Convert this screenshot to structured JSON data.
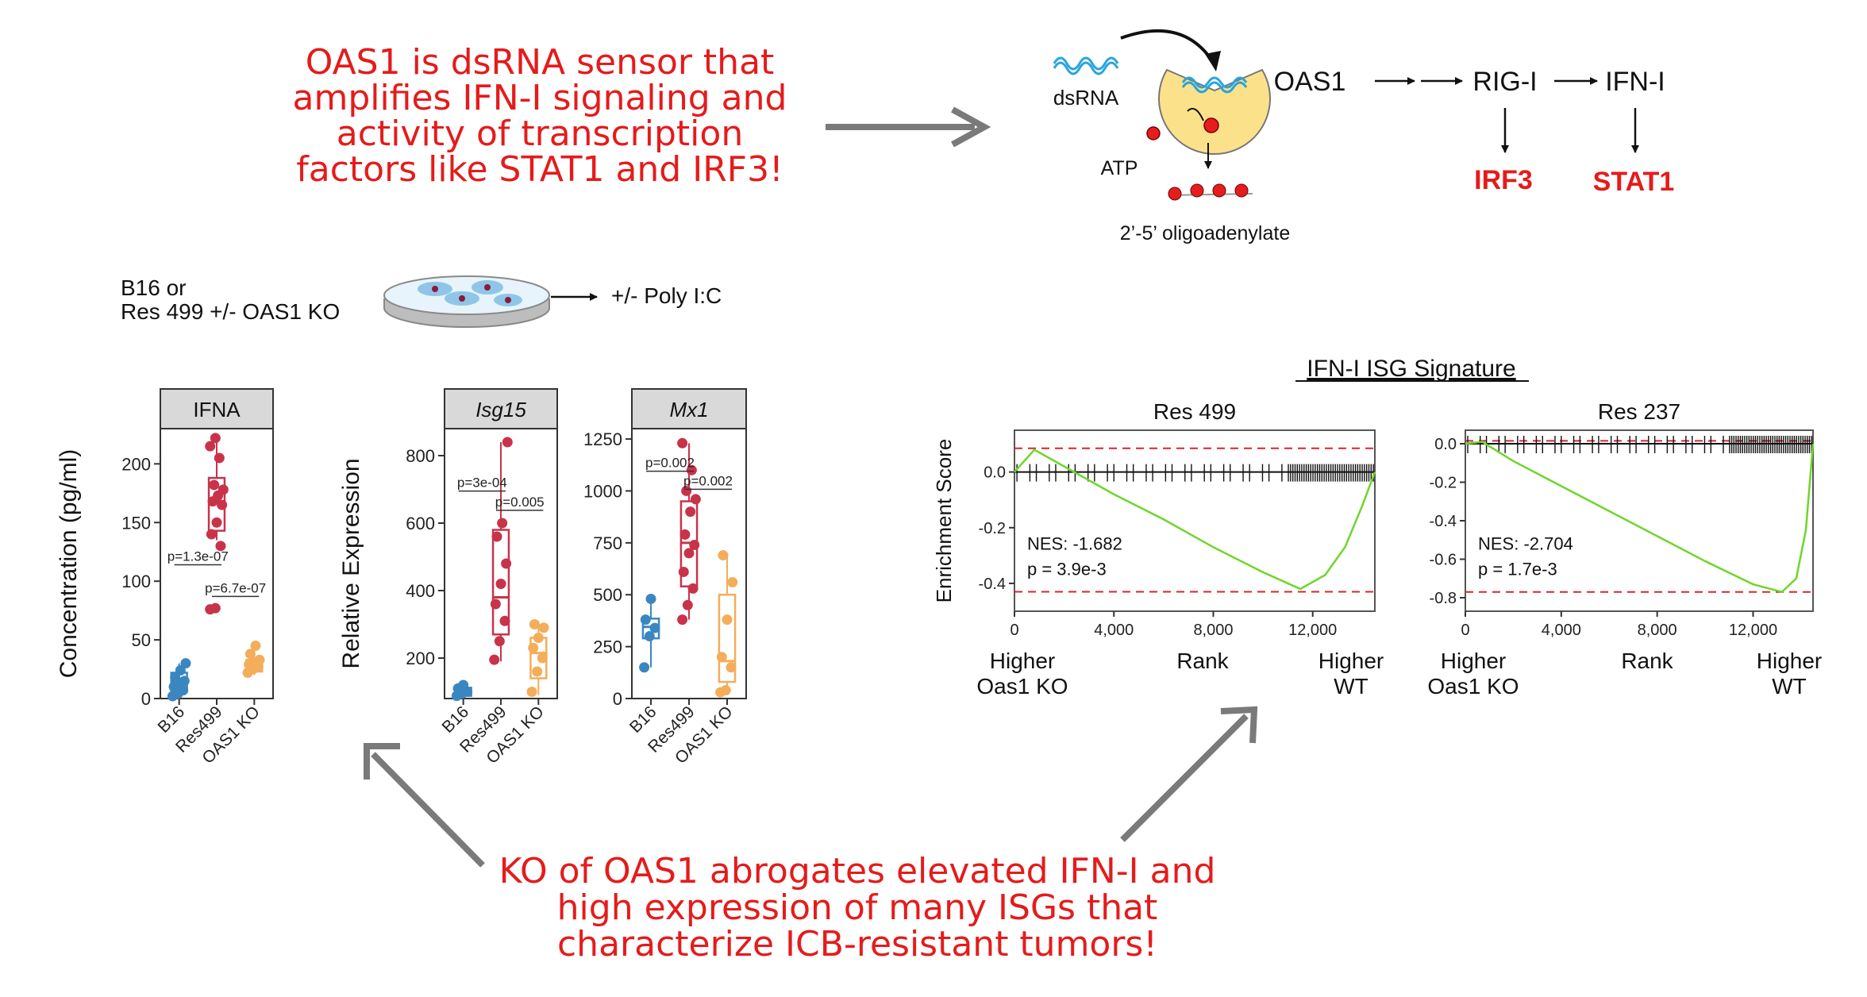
{
  "callout_top": [
    "OAS1 is dsRNA sensor that",
    "amplifies IFN-I signaling and",
    "activity of transcription",
    "factors like STAT1 and IRF3!"
  ],
  "callout_bottom": [
    "KO of OAS1 abrogates elevated IFN-I and",
    "high expression of many ISGs that",
    "characterize ICB-resistant tumors!"
  ],
  "pathway": {
    "dsrna": "dsRNA",
    "atp": "ATP",
    "product": "2’-5’ oligoadenylate",
    "oas1": "OAS1",
    "rigi": "RIG-I",
    "ifni": "IFN-I",
    "irf3": "IRF3",
    "stat1": "STAT1"
  },
  "experiment": {
    "line1": "B16 or",
    "line2": "Res 499 +/- OAS1 KO",
    "treatment": "+/- Poly I:C"
  },
  "colors": {
    "b16": "#3a87c0",
    "res499": "#c8334a",
    "oas1ko": "#f4ad5a",
    "gsea_curve": "#6ed62a",
    "threshold": "#d6262d",
    "callout": "#e51b1b"
  },
  "chart_data": [
    {
      "type": "box",
      "panel_title": "IFNA",
      "ylabel": "Concentration (pg/ml)",
      "categories": [
        "B16",
        "Res499",
        "OAS1 KO"
      ],
      "ylim": [
        0,
        230
      ],
      "yticks": [
        0,
        50,
        100,
        150,
        200
      ],
      "boxes": [
        {
          "q1": 6,
          "median": 13,
          "q3": 22,
          "whisker_low": 2,
          "whisker_high": 30
        },
        {
          "q1": 143,
          "median": 168,
          "q3": 188,
          "whisker_low": 135,
          "whisker_high": 222
        },
        {
          "q1": 23,
          "median": 28,
          "q3": 33,
          "whisker_low": 20,
          "whisker_high": 45
        }
      ],
      "points": [
        [
          2,
          4,
          7,
          10,
          13,
          15,
          18,
          24,
          30
        ],
        [
          76,
          77,
          130,
          140,
          150,
          165,
          168,
          173,
          178,
          182,
          205,
          215,
          222
        ],
        [
          22,
          25,
          27,
          29,
          31,
          33,
          38,
          45
        ]
      ],
      "pvalues": [
        {
          "label": "p=1.3e-07",
          "from": 0,
          "to": 1,
          "y": 114
        },
        {
          "label": "p=6.7e-07",
          "from": 1,
          "to": 2,
          "y": 87
        }
      ]
    },
    {
      "type": "box",
      "panel_title": "Isg15",
      "ylabel": "Relative Expression",
      "categories": [
        "B16",
        "Res499",
        "OAS1 KO"
      ],
      "ylim": [
        80,
        880
      ],
      "yticks": [
        200,
        400,
        600,
        800
      ],
      "boxes": [
        {
          "q1": 88,
          "median": 98,
          "q3": 112,
          "whisker_low": 82,
          "whisker_high": 125
        },
        {
          "q1": 270,
          "median": 380,
          "q3": 580,
          "whisker_low": 190,
          "whisker_high": 840
        },
        {
          "q1": 140,
          "median": 215,
          "q3": 260,
          "whisker_low": 90,
          "whisker_high": 310
        }
      ],
      "points": [
        [
          88,
          95,
          100,
          110,
          120
        ],
        [
          195,
          250,
          310,
          360,
          420,
          480,
          560,
          600,
          840
        ],
        [
          100,
          160,
          200,
          230,
          260,
          290,
          300
        ]
      ],
      "pvalues": [
        {
          "label": "p=3e-04",
          "from": 0,
          "to": 1,
          "y": 695
        },
        {
          "label": "p=0.005",
          "from": 1,
          "to": 2,
          "y": 638
        }
      ]
    },
    {
      "type": "box",
      "panel_title": "Mx1",
      "ylabel": "",
      "categories": [
        "B16",
        "Res499",
        "OAS1 KO"
      ],
      "ylim": [
        0,
        1300
      ],
      "yticks": [
        0,
        250,
        500,
        750,
        1000,
        1250
      ],
      "boxes": [
        {
          "q1": 290,
          "median": 345,
          "q3": 385,
          "whisker_low": 150,
          "whisker_high": 490
        },
        {
          "q1": 540,
          "median": 750,
          "q3": 950,
          "whisker_low": 380,
          "whisker_high": 1230
        },
        {
          "q1": 80,
          "median": 180,
          "q3": 500,
          "whisker_low": 20,
          "whisker_high": 690
        }
      ],
      "points": [
        [
          150,
          300,
          340,
          380,
          480
        ],
        [
          380,
          450,
          530,
          610,
          700,
          740,
          790,
          900,
          960,
          1000,
          1100,
          1230
        ],
        [
          30,
          40,
          150,
          200,
          380,
          560,
          690
        ]
      ],
      "pvalues": [
        {
          "label": "p=0.002",
          "from": 0,
          "to": 1,
          "y": 1095
        },
        {
          "label": "p=0.002",
          "from": 1,
          "to": 2,
          "y": 1008
        }
      ]
    },
    {
      "type": "line",
      "subtitle": "Res 499",
      "ylabel": "Enrichment Score",
      "xlim": [
        0,
        14500
      ],
      "ylim": [
        -0.5,
        0.15
      ],
      "yticks": [
        0.0,
        -0.2,
        -0.4
      ],
      "xticks": [
        0,
        4000,
        8000,
        12000
      ],
      "x": [
        0,
        800,
        2000,
        4000,
        6000,
        8000,
        10000,
        11500,
        12500,
        13300,
        14000,
        14500
      ],
      "y": [
        0.0,
        0.08,
        0.02,
        -0.08,
        -0.17,
        -0.27,
        -0.36,
        -0.42,
        -0.37,
        -0.27,
        -0.12,
        0.0
      ],
      "thresholds": [
        0.085,
        -0.43
      ],
      "nes": "NES: -1.682",
      "pval": "p = 3.9e-3",
      "x_left": [
        "Higher",
        "Oas1 KO"
      ],
      "x_mid": "Rank",
      "x_right": [
        "Higher",
        "WT"
      ]
    },
    {
      "type": "line",
      "subtitle": "Res 237",
      "ylabel": "",
      "xlim": [
        0,
        14500
      ],
      "ylim": [
        -0.87,
        0.07
      ],
      "yticks": [
        0.0,
        -0.2,
        -0.4,
        -0.6,
        -0.8
      ],
      "xticks": [
        0,
        4000,
        8000,
        12000
      ],
      "x": [
        0,
        700,
        2000,
        4000,
        6000,
        8000,
        10000,
        12000,
        13200,
        13800,
        14200,
        14500
      ],
      "y": [
        0.0,
        0.01,
        -0.09,
        -0.22,
        -0.35,
        -0.48,
        -0.61,
        -0.73,
        -0.77,
        -0.7,
        -0.45,
        0.0
      ],
      "thresholds": [
        0.015,
        -0.77
      ],
      "nes": "NES: -2.704",
      "pval": "p = 1.7e-3",
      "x_left": [
        "Higher",
        "Oas1 KO"
      ],
      "x_mid": "Rank",
      "x_right": [
        "Higher",
        "WT"
      ]
    }
  ],
  "gsea_title": "IFN-I ISG Signature"
}
